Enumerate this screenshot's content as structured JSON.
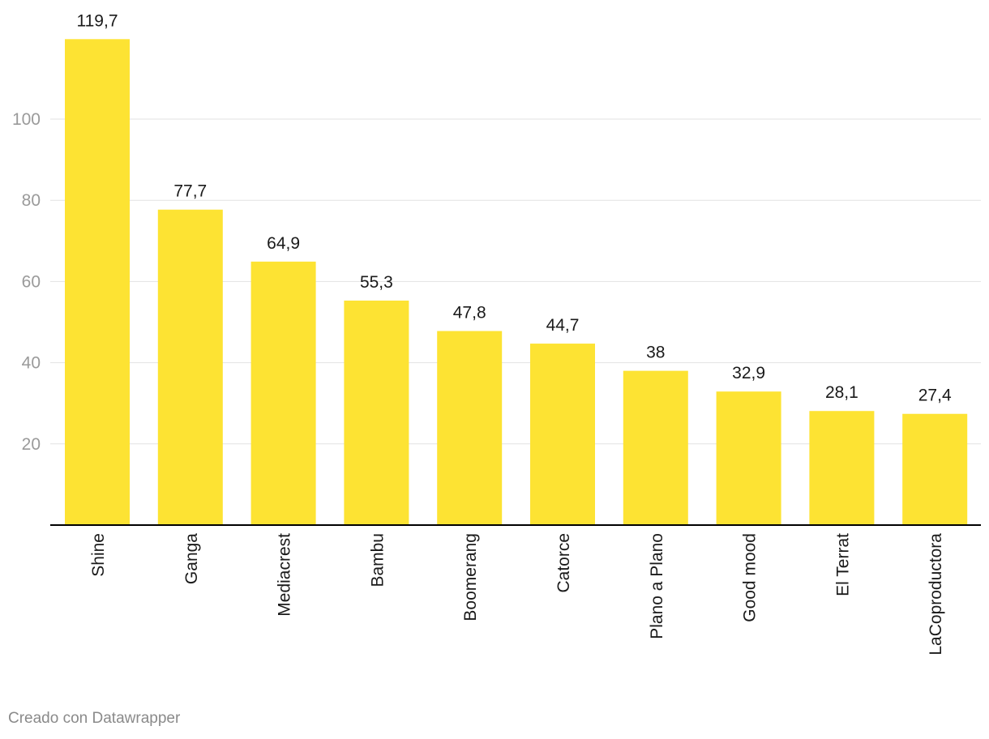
{
  "chart_data": {
    "type": "bar",
    "categories": [
      "Shine",
      "Ganga",
      "Mediacrest",
      "Bambu",
      "Boomerang",
      "Catorce",
      "Plano a Plano",
      "Good mood",
      "El Terrat",
      "LaCoproductora"
    ],
    "values": [
      119.7,
      77.7,
      64.9,
      55.3,
      47.8,
      44.7,
      38,
      32.9,
      28.1,
      27.4
    ],
    "value_labels": [
      "119,7",
      "77,7",
      "64,9",
      "55,3",
      "47,8",
      "44,7",
      "38",
      "32,9",
      "28,1",
      "27,4"
    ],
    "title": "",
    "xlabel": "",
    "ylabel": "",
    "ylim": [
      0,
      120
    ],
    "yticks": [
      20,
      40,
      60,
      80,
      100
    ],
    "grid": true,
    "legend": "none",
    "bar_color": "#fde333"
  },
  "footer": {
    "credit": "Creado con Datawrapper"
  }
}
